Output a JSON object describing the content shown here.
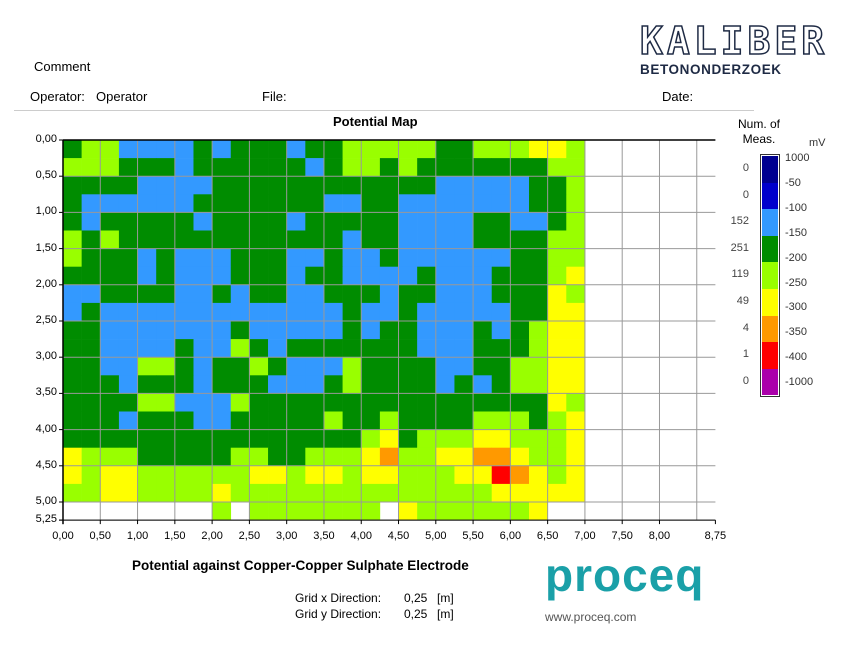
{
  "header": {
    "comment_label": "Comment",
    "operator_label": "Operator:",
    "operator_value": "Operator",
    "file_label": "File:",
    "date_label": "Date:",
    "logo_text": "KALIBER",
    "logo_subtext": "BETONONDERZOEK"
  },
  "footer": {
    "subtitle": "Potential against Copper-Copper Sulphate Electrode",
    "grid_x_label": "Grid x Direction:",
    "grid_x_value": "0,25",
    "grid_x_unit": "[m]",
    "grid_y_label": "Grid y Direction:",
    "grid_y_value": "0,25",
    "grid_y_unit": "[m]",
    "brand_logo": "proceq",
    "brand_url": "www.proceq.com"
  },
  "chart_data": {
    "type": "heatmap",
    "title": "Potential Map",
    "xlim": [
      0,
      8.75
    ],
    "ylim": [
      0,
      5.25
    ],
    "cell_size": [
      0.25,
      0.25
    ],
    "x_ticks": [
      "0,00",
      "0,50",
      "1,00",
      "1,50",
      "2,00",
      "2,50",
      "3,00",
      "3,50",
      "4,00",
      "4,50",
      "5,00",
      "5,50",
      "6,00",
      "6,50",
      "7,00",
      "7,50",
      "8,00",
      "8,75"
    ],
    "x_tick_values": [
      0,
      0.5,
      1,
      1.5,
      2,
      2.5,
      3,
      3.5,
      4,
      4.5,
      5,
      5.5,
      6,
      6.5,
      7,
      7.5,
      8,
      8.75
    ],
    "y_ticks": [
      "0,00",
      "0,50",
      "1,00",
      "1,50",
      "2,00",
      "2,50",
      "3,00",
      "3,50",
      "4,00",
      "4,50",
      "5,00",
      "5,25"
    ],
    "y_tick_values": [
      0,
      0.5,
      1,
      1.5,
      2,
      2.5,
      3,
      3.5,
      4,
      4.5,
      5,
      5.25
    ],
    "legend": {
      "count_header": "Num. of Meas.",
      "unit": "mV",
      "boundaries": [
        "1000",
        "-50",
        "-100",
        "-150",
        "-200",
        "-250",
        "-300",
        "-350",
        "-400",
        "-1000"
      ],
      "classes": [
        {
          "code": "N",
          "color": "#000090",
          "count": "0"
        },
        {
          "code": "K",
          "color": "#0000cc",
          "count": "0"
        },
        {
          "code": "B",
          "color": "#3399ff",
          "count": "152"
        },
        {
          "code": "D",
          "color": "#008c00",
          "count": "251"
        },
        {
          "code": "L",
          "color": "#99ff00",
          "count": "119"
        },
        {
          "code": "Y",
          "color": "#ffff00",
          "count": "49"
        },
        {
          "code": "O",
          "color": "#ff9900",
          "count": "4"
        },
        {
          "code": "R",
          "color": "#ff0000",
          "count": "1"
        },
        {
          "code": "P",
          "color": "#aa00aa",
          "count": "0"
        }
      ]
    },
    "rows": [
      "DLLBBBBDBDDDBDDLLLLLDDLLLYYL",
      "LLLDDDBDDDDDDBDLLDLDDDDDDDLL",
      "DDDDBBBBDDDDDDDDDDDDBBBBBDDL",
      "DBBBBBBDDDDDDDBBDDBBBBBBBDDL",
      "DBDDDDDBDDDDBDDDDDBBBBDDBBDL",
      "LDLDDDDDDDDDDDDBDDBBBBDDDDLL",
      "LDDDBDBBBDDDBBDBBDBBBBBBDDLL",
      "DDDDBDBBBDDDBDDBBBBDBBBDDDLY",
      "BBDDDDBBDBDDBBDDDBDDBBBDDDYL",
      "BDBBBBBBBBBBBBBDBBDBBBBBDDYY",
      "DDBBBBBBBDBBBBBDBDDBBBDBDLYY",
      "DDBBBBDBBLDBDDDDDDDBBBDDDLYY",
      "DDBBLLDBDDLDBBBLDDDDBBDDLLYY",
      "DDDBDDDBDDDBBBDLDDDDBDBDLLYY",
      "DDDDLLBBBLDDDDDDDDDDDDDDDDYL",
      "DDDBDDDBBDDDDDLDDLDDDDLLLDLY",
      "DDDDDDDDDDDDDDDDLYDLLLYYLLLY",
      "YLLLDDDDDLLDDLLLYOLLYYOOYLLY",
      "YLYYLLLLLLYYLYYLYYLLLYYROYLY",
      "LLYYLLLLYLLLLLLLLLLLLLLYYYYY",
      "WWWWWWWWLWLLLLLLLWYLLLLLLYWW"
    ]
  }
}
